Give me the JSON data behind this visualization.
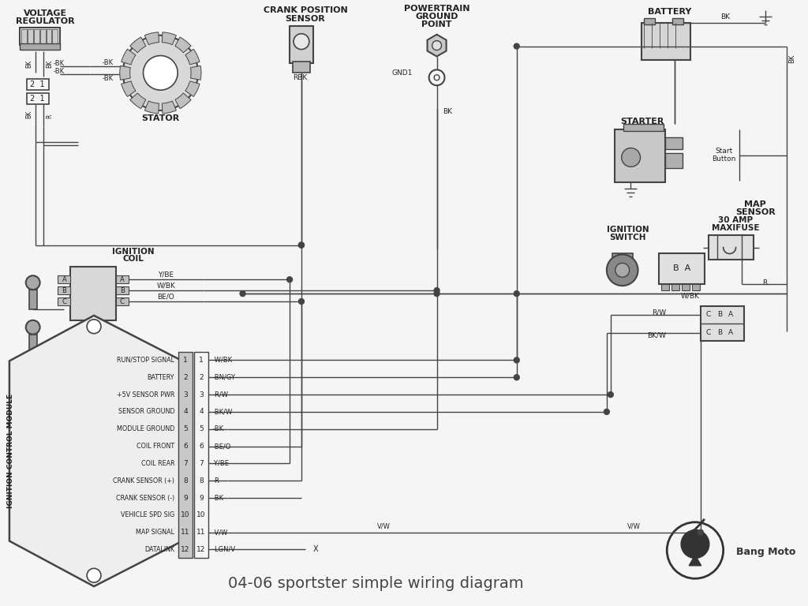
{
  "title": "04-06 sportster simple wiring diagram",
  "bg_color": "#f5f5f5",
  "line_color": "#444444",
  "text_color": "#222222",
  "icm_pins": [
    [
      "1",
      "RUN/STOP SIGNAL",
      "W/BK"
    ],
    [
      "2",
      "BATTERY",
      "BN/GY"
    ],
    [
      "3",
      "+5V SENSOR PWR",
      "R/W"
    ],
    [
      "4",
      "SENSOR GROUND",
      "BK/W"
    ],
    [
      "5",
      "MODULE GROUND",
      "BK"
    ],
    [
      "6",
      "COIL FRONT",
      "BE/O"
    ],
    [
      "7",
      "COIL REAR",
      "Y/BE"
    ],
    [
      "8",
      "CRANK SENSOR (+)",
      "R"
    ],
    [
      "9",
      "CRANK SENSOR (-)",
      "BK"
    ],
    [
      "10",
      "VEHICLE SPD SIG",
      ""
    ],
    [
      "11",
      "MAP SIGNAL",
      "V/W"
    ],
    [
      "12",
      "DATALINK",
      "LGN/V"
    ]
  ],
  "logo_text": "Bang Moto"
}
